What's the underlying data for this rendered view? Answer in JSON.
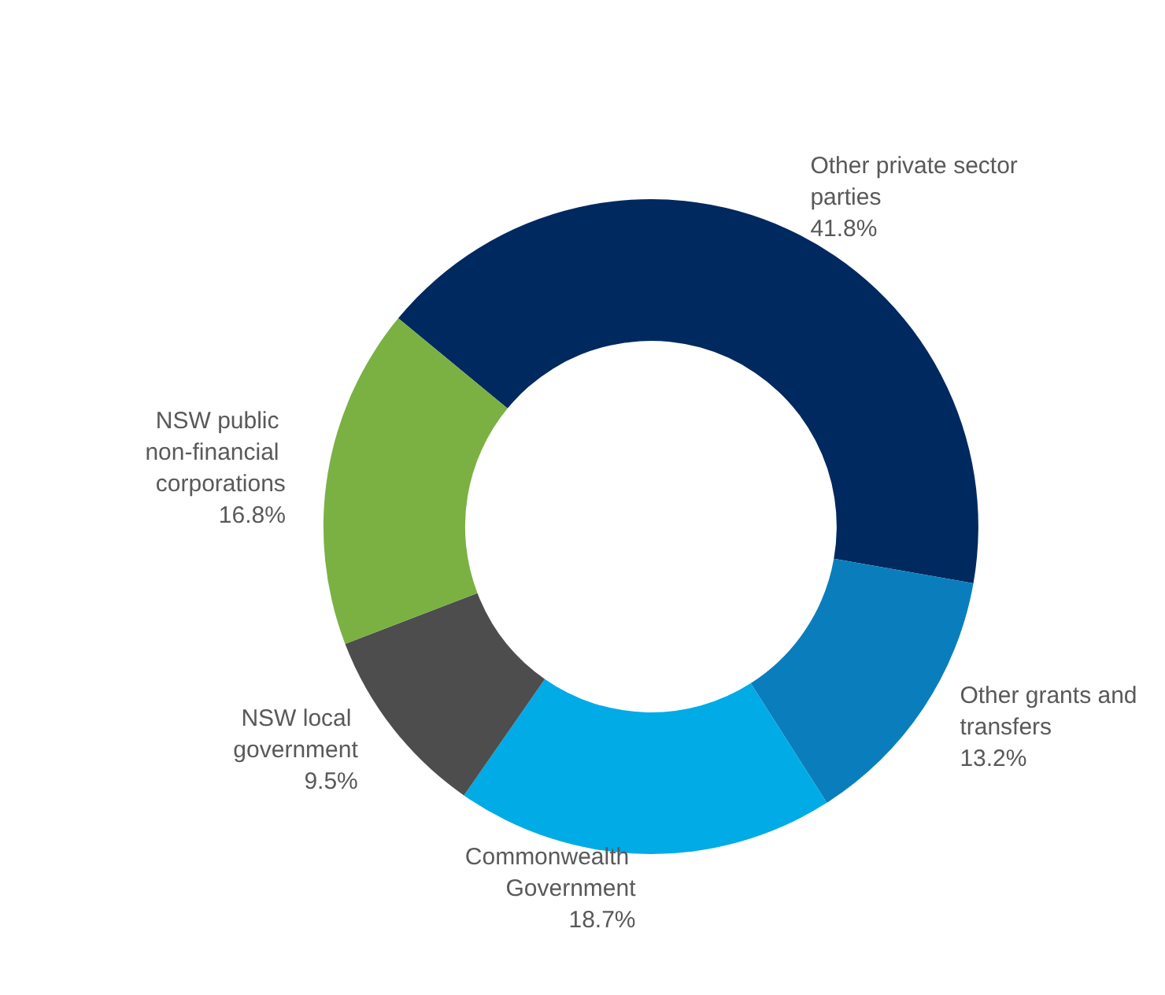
{
  "chart_data": {
    "type": "donut",
    "categories": [
      "Other private sector parties",
      "Other grants and transfers",
      "Commonwealth Government",
      "NSW local government",
      "NSW public non-financial corporations"
    ],
    "values": [
      41.8,
      13.2,
      18.7,
      9.5,
      16.8
    ],
    "colors": [
      "#002960",
      "#0a7ebc",
      "#00abe6",
      "#4d4d4d",
      "#7ab142"
    ],
    "value_labels": [
      "41.8%",
      "13.2%",
      "18.7%",
      "9.5%",
      "16.8%"
    ],
    "legend": false
  }
}
